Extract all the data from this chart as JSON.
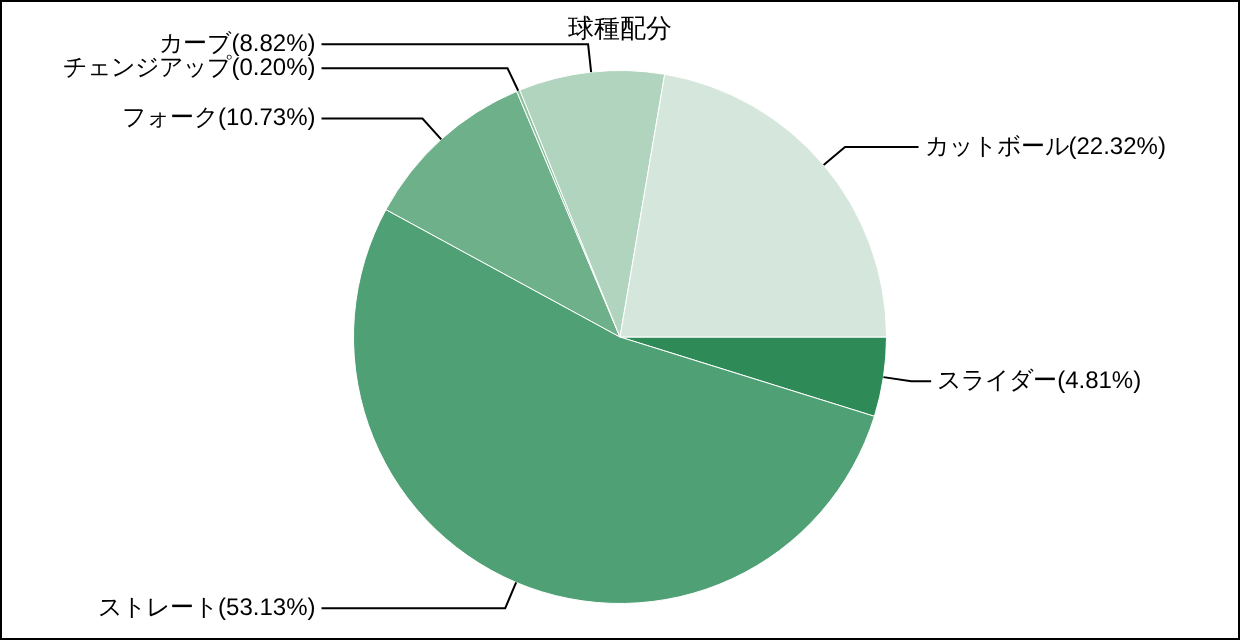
{
  "chart_data": {
    "type": "pie",
    "title": "球種配分",
    "categories": [
      "スライダー",
      "ストレート",
      "フォーク",
      "チェンジアップ",
      "カーブ",
      "カットボール"
    ],
    "values": [
      4.81,
      53.13,
      10.73,
      0.2,
      8.82,
      22.32
    ],
    "value_labels": [
      "(4.81%)",
      "(53.13%)",
      "(10.73%)",
      "(0.20%)",
      "(8.82%)",
      "(22.32%)"
    ],
    "colors": [
      "#2e8b57",
      "#4fa074",
      "#6db08a",
      "#8cc2a0",
      "#b0d4bd",
      "#d5e7dc"
    ],
    "legend": false
  }
}
